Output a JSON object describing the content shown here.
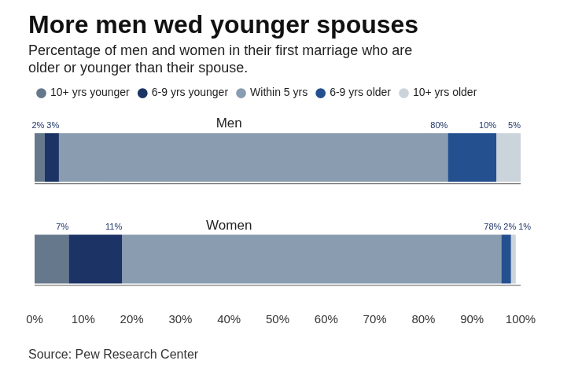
{
  "chart_data": {
    "type": "bar",
    "orientation": "horizontal",
    "stacked": true,
    "title": "More men wed younger spouses",
    "subtitle": [
      "Percentage of men and women in their first marriage who are",
      "older or younger than their spouse."
    ],
    "source": "Source: Pew Research Center",
    "categories": [
      "Men",
      "Women"
    ],
    "series": [
      {
        "name": "10+ yrs younger",
        "color": "#66788b",
        "values": [
          2,
          7
        ],
        "value_labels": [
          "2%",
          "7%"
        ]
      },
      {
        "name": "6-9 yrs younger",
        "color": "#1c3366",
        "values": [
          3,
          11
        ],
        "value_labels": [
          "3%",
          "11%"
        ]
      },
      {
        "name": "Within 5 yrs",
        "color": "#8a9db0",
        "values": [
          80,
          78
        ],
        "value_labels": [
          "80%",
          "78%"
        ]
      },
      {
        "name": "6-9 yrs older",
        "color": "#24508f",
        "values": [
          10,
          2
        ],
        "value_labels": [
          "10%",
          "2%"
        ]
      },
      {
        "name": "10+ yrs older",
        "color": "#ccd4db",
        "values": [
          5,
          1
        ],
        "value_labels": [
          "5%",
          "1%"
        ]
      }
    ],
    "xlim": [
      0,
      100
    ],
    "xticks": [
      {
        "value": 0,
        "label": "0%"
      },
      {
        "value": 10,
        "label": "10%"
      },
      {
        "value": 20,
        "label": "20%"
      },
      {
        "value": 30,
        "label": "30%"
      },
      {
        "value": 40,
        "label": "40%"
      },
      {
        "value": 50,
        "label": "50%"
      },
      {
        "value": 60,
        "label": "60%"
      },
      {
        "value": 70,
        "label": "70%"
      },
      {
        "value": 80,
        "label": "80%"
      },
      {
        "value": 90,
        "label": "90%"
      },
      {
        "value": 100,
        "label": "100%"
      }
    ],
    "grid": false,
    "legend": "top-left",
    "data_labels": true,
    "tick_labels": "x"
  }
}
